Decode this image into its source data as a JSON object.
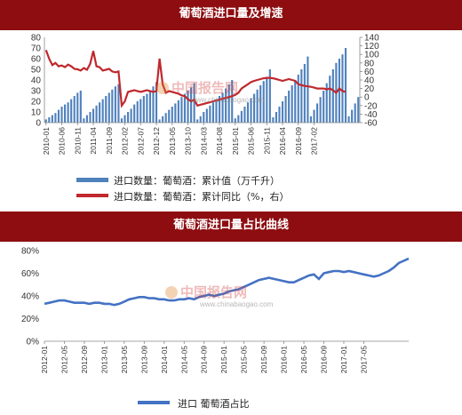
{
  "banner1": "葡萄酒进口量及增速",
  "banner2": "葡萄酒进口量占比曲线",
  "watermark": {
    "cn": "中国报告网",
    "url": "www.chinabaogao.com"
  },
  "colors": {
    "bar": "#4f81bd",
    "line_red": "#c0282d",
    "line_blue": "#4472c4",
    "banner": "#8d0d10"
  },
  "chart_data": [
    {
      "type": "bar+line",
      "ylim_left": [
        0,
        80
      ],
      "yticks_left": [
        "0",
        "10",
        "20",
        "30",
        "40",
        "50",
        "60",
        "70",
        "80"
      ],
      "ylim_right": [
        -60,
        140
      ],
      "yticks_right": [
        "-60",
        "-40",
        "-20",
        "0",
        "20",
        "40",
        "60",
        "80",
        "100",
        "120",
        "140"
      ],
      "x_tick_labels": [
        "2010-01",
        "2010-06",
        "2010-11",
        "2011-04",
        "2011-09",
        "2012-02",
        "2012-07",
        "2012-12",
        "2013-05",
        "2013-10",
        "2014-03",
        "2014-08",
        "2015-01",
        "2015-06",
        "2015-11",
        "2016-04",
        "2016-09",
        "2017-02"
      ],
      "start": "2010-01",
      "series": [
        {
          "name": "进口数量：葡萄酒：累计值（万千升）",
          "kind": "bar",
          "values": [
            3,
            5,
            7,
            9,
            12,
            15,
            17,
            19,
            22,
            25,
            28,
            30,
            4,
            7,
            10,
            13,
            16,
            19,
            22,
            25,
            28,
            31,
            34,
            36,
            4,
            7,
            10,
            13,
            17,
            20,
            22,
            25,
            27,
            30,
            34,
            38,
            3,
            6,
            9,
            12,
            15,
            18,
            21,
            24,
            27,
            30,
            33,
            37,
            3,
            6,
            10,
            13,
            16,
            19,
            22,
            25,
            28,
            32,
            36,
            40,
            4,
            7,
            11,
            15,
            19,
            23,
            27,
            31,
            35,
            39,
            43,
            50,
            5,
            10,
            15,
            20,
            25,
            30,
            35,
            40,
            45,
            50,
            55,
            62,
            6,
            12,
            18,
            24,
            30,
            37,
            44,
            50,
            56,
            60,
            64,
            70,
            6,
            12,
            18,
            24
          ]
        },
        {
          "name": "进口数量：葡萄酒：累计同比（%，右）",
          "kind": "line",
          "values": [
            110,
            90,
            75,
            80,
            72,
            74,
            70,
            76,
            72,
            66,
            65,
            62,
            68,
            64,
            78,
            108,
            72,
            70,
            62,
            64,
            66,
            60,
            58,
            60,
            -20,
            -10,
            12,
            14,
            16,
            14,
            12,
            14,
            16,
            14,
            12,
            14,
            90,
            30,
            10,
            14,
            12,
            10,
            8,
            4,
            2,
            -5,
            -10,
            -6,
            -20,
            -18,
            -16,
            -14,
            -12,
            -10,
            -8,
            -6,
            -4,
            -2,
            0,
            2,
            5,
            10,
            20,
            25,
            30,
            35,
            38,
            40,
            42,
            44,
            45,
            45,
            44,
            42,
            40,
            38,
            40,
            42,
            40,
            38,
            30,
            28,
            26,
            25,
            24,
            22,
            20,
            20,
            20,
            18,
            20,
            16,
            10,
            20,
            14,
            12
          ]
        }
      ]
    },
    {
      "type": "line",
      "ylim": [
        0,
        80
      ],
      "yticks": [
        "0%",
        "20%",
        "40%",
        "60%",
        "80%"
      ],
      "x_tick_labels": [
        "2012-01",
        "2012-05",
        "2012-09",
        "2013-01",
        "2013-05",
        "2013-09",
        "2014-01",
        "2014-05",
        "2014-09",
        "2015-01",
        "2015-05",
        "2015-09",
        "2016-01",
        "2016-05",
        "2016-09",
        "2017-01",
        "2017-05"
      ],
      "start": "2012-01",
      "series": [
        {
          "name": "进口 葡萄酒占比",
          "values": [
            33,
            34,
            35,
            36,
            36,
            35,
            34,
            34,
            34,
            33,
            34,
            34,
            33,
            33,
            32,
            33,
            35,
            37,
            38,
            39,
            39,
            38,
            38,
            37,
            37,
            36,
            36,
            37,
            37,
            38,
            37,
            39,
            40,
            41,
            40,
            41,
            42,
            44,
            45,
            46,
            48,
            50,
            52,
            54,
            55,
            56,
            55,
            54,
            53,
            52,
            52,
            54,
            56,
            58,
            59,
            55,
            60,
            61,
            62,
            62,
            61,
            62,
            61,
            60,
            59,
            58,
            57,
            58,
            60,
            62,
            65,
            69,
            71,
            73
          ]
        }
      ]
    }
  ]
}
